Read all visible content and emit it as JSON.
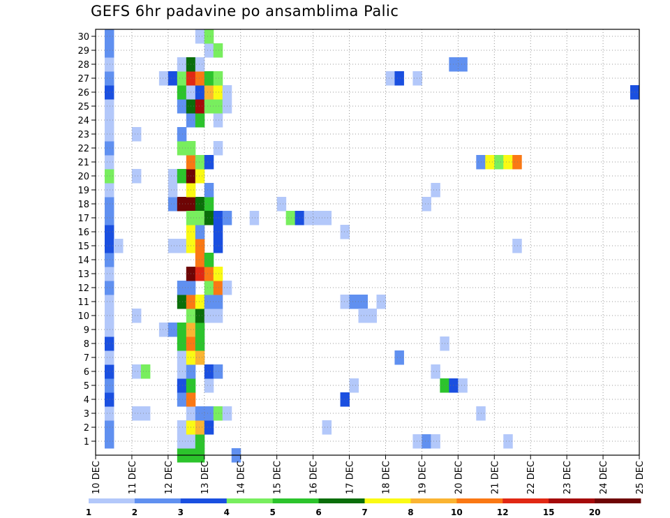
{
  "chart_data": {
    "type": "heatmap",
    "title": "GEFS 6hr padavine po ansamblima Palic",
    "xlabel": "",
    "ylabel": "",
    "x_tick_labels": [
      "10 DEC",
      "11 DEC",
      "12 DEC",
      "13 DEC",
      "14 DEC",
      "15 DEC",
      "16 DEC",
      "17 DEC",
      "18 DEC",
      "19 DEC",
      "20 DEC",
      "21 DEC",
      "22 DEC",
      "23 DEC",
      "24 DEC",
      "25 DEC"
    ],
    "xlim": [
      0,
      15
    ],
    "y_tick_labels": [
      "1",
      "2",
      "3",
      "4",
      "5",
      "6",
      "7",
      "8",
      "9",
      "10",
      "11",
      "12",
      "13",
      "14",
      "15",
      "16",
      "17",
      "18",
      "19",
      "20",
      "21",
      "22",
      "23",
      "24",
      "25",
      "26",
      "27",
      "28",
      "29",
      "30"
    ],
    "ylim": [
      0,
      30
    ],
    "grid": true,
    "legend_position": "bottom",
    "colorbar": {
      "labels": [
        "1",
        "2",
        "3",
        "4",
        "5",
        "6",
        "7",
        "8",
        "10",
        "12",
        "15",
        "20"
      ],
      "colors": [
        "#b3c8fa",
        "#6090f0",
        "#1a4fe0",
        "#78ee5e",
        "#2cc42c",
        "#0a6e0a",
        "#fafa14",
        "#fab432",
        "#fa7814",
        "#e12814",
        "#a50a0a",
        "#6e0505"
      ]
    },
    "cells": [
      {
        "x": 1,
        "y": 1,
        "c": 2
      },
      {
        "x": 1,
        "y": 2,
        "c": 2
      },
      {
        "x": 1,
        "y": 3,
        "c": 1
      },
      {
        "x": 1,
        "y": 4,
        "c": 3
      },
      {
        "x": 1,
        "y": 5,
        "c": 2
      },
      {
        "x": 1,
        "y": 6,
        "c": 3
      },
      {
        "x": 1,
        "y": 7,
        "c": 1
      },
      {
        "x": 1,
        "y": 8,
        "c": 3
      },
      {
        "x": 1,
        "y": 9,
        "c": 1
      },
      {
        "x": 1,
        "y": 10,
        "c": 1
      },
      {
        "x": 1,
        "y": 11,
        "c": 1
      },
      {
        "x": 1,
        "y": 12,
        "c": 2
      },
      {
        "x": 1,
        "y": 13,
        "c": 1
      },
      {
        "x": 1,
        "y": 14,
        "c": 2
      },
      {
        "x": 1,
        "y": 15,
        "c": 3
      },
      {
        "x": 1,
        "y": 16,
        "c": 3
      },
      {
        "x": 1,
        "y": 17,
        "c": 2
      },
      {
        "x": 1,
        "y": 18,
        "c": 2
      },
      {
        "x": 1,
        "y": 19,
        "c": 1
      },
      {
        "x": 1,
        "y": 20,
        "c": 4
      },
      {
        "x": 1,
        "y": 21,
        "c": 1
      },
      {
        "x": 1,
        "y": 22,
        "c": 2
      },
      {
        "x": 1,
        "y": 23,
        "c": 1
      },
      {
        "x": 1,
        "y": 24,
        "c": 1
      },
      {
        "x": 1,
        "y": 25,
        "c": 1
      },
      {
        "x": 1,
        "y": 26,
        "c": 3
      },
      {
        "x": 1,
        "y": 27,
        "c": 2
      },
      {
        "x": 1,
        "y": 28,
        "c": 1
      },
      {
        "x": 1,
        "y": 29,
        "c": 2
      },
      {
        "x": 1,
        "y": 30,
        "c": 2
      },
      {
        "x": 2,
        "y": 15,
        "c": 1
      },
      {
        "x": 4,
        "y": 3,
        "c": 1
      },
      {
        "x": 5,
        "y": 3,
        "c": 1
      },
      {
        "x": 4,
        "y": 6,
        "c": 1
      },
      {
        "x": 5,
        "y": 6,
        "c": 4
      },
      {
        "x": 4,
        "y": 10,
        "c": 1
      },
      {
        "x": 4,
        "y": 20,
        "c": 1
      },
      {
        "x": 4,
        "y": 23,
        "c": 1
      },
      {
        "x": 7,
        "y": 9,
        "c": 1
      },
      {
        "x": 8,
        "y": 9,
        "c": 2
      },
      {
        "x": 7,
        "y": 27,
        "c": 1
      },
      {
        "x": 8,
        "y": 27,
        "c": 3
      },
      {
        "x": 8,
        "y": 15,
        "c": 1
      },
      {
        "x": 9,
        "y": 15,
        "c": 1
      },
      {
        "x": 8,
        "y": 18,
        "c": 2
      },
      {
        "x": 9,
        "y": 18,
        "c": 12
      },
      {
        "x": 10,
        "y": 18,
        "c": 12
      },
      {
        "x": 11,
        "y": 18,
        "c": 6
      },
      {
        "x": 12,
        "y": 18,
        "c": 5
      },
      {
        "x": 8,
        "y": 19,
        "c": 1
      },
      {
        "x": 10,
        "y": 19,
        "c": 7
      },
      {
        "x": 12,
        "y": 19,
        "c": 2
      },
      {
        "x": 8,
        "y": 20,
        "c": 1
      },
      {
        "x": 9,
        "y": 20,
        "c": 5
      },
      {
        "x": 10,
        "y": 20,
        "c": 12
      },
      {
        "x": 11,
        "y": 20,
        "c": 7
      },
      {
        "x": 9,
        "y": 0,
        "c": 5
      },
      {
        "x": 10,
        "y": 0,
        "c": 5
      },
      {
        "x": 11,
        "y": 0,
        "c": 5
      },
      {
        "x": 9,
        "y": 1,
        "c": 1
      },
      {
        "x": 10,
        "y": 1,
        "c": 1
      },
      {
        "x": 11,
        "y": 1,
        "c": 5
      },
      {
        "x": 9,
        "y": 2,
        "c": 1
      },
      {
        "x": 10,
        "y": 2,
        "c": 7
      },
      {
        "x": 11,
        "y": 2,
        "c": 8
      },
      {
        "x": 12,
        "y": 2,
        "c": 3
      },
      {
        "x": 10,
        "y": 3,
        "c": 1
      },
      {
        "x": 11,
        "y": 3,
        "c": 2
      },
      {
        "x": 12,
        "y": 3,
        "c": 2
      },
      {
        "x": 13,
        "y": 3,
        "c": 4
      },
      {
        "x": 14,
        "y": 3,
        "c": 1
      },
      {
        "x": 9,
        "y": 4,
        "c": 2
      },
      {
        "x": 10,
        "y": 4,
        "c": 9
      },
      {
        "x": 9,
        "y": 5,
        "c": 3
      },
      {
        "x": 10,
        "y": 5,
        "c": 5
      },
      {
        "x": 12,
        "y": 5,
        "c": 1
      },
      {
        "x": 9,
        "y": 6,
        "c": 1
      },
      {
        "x": 10,
        "y": 6,
        "c": 2
      },
      {
        "x": 12,
        "y": 6,
        "c": 3
      },
      {
        "x": 13,
        "y": 6,
        "c": 2
      },
      {
        "x": 9,
        "y": 7,
        "c": 1
      },
      {
        "x": 10,
        "y": 7,
        "c": 7
      },
      {
        "x": 11,
        "y": 7,
        "c": 8
      },
      {
        "x": 9,
        "y": 8,
        "c": 5
      },
      {
        "x": 10,
        "y": 8,
        "c": 9
      },
      {
        "x": 11,
        "y": 8,
        "c": 5
      },
      {
        "x": 9,
        "y": 9,
        "c": 5
      },
      {
        "x": 10,
        "y": 9,
        "c": 8
      },
      {
        "x": 11,
        "y": 9,
        "c": 5
      },
      {
        "x": 10,
        "y": 10,
        "c": 4
      },
      {
        "x": 11,
        "y": 10,
        "c": 6
      },
      {
        "x": 12,
        "y": 10,
        "c": 1
      },
      {
        "x": 13,
        "y": 10,
        "c": 1
      },
      {
        "x": 9,
        "y": 11,
        "c": 6
      },
      {
        "x": 10,
        "y": 11,
        "c": 9
      },
      {
        "x": 11,
        "y": 11,
        "c": 7
      },
      {
        "x": 12,
        "y": 11,
        "c": 2
      },
      {
        "x": 13,
        "y": 11,
        "c": 2
      },
      {
        "x": 9,
        "y": 12,
        "c": 2
      },
      {
        "x": 10,
        "y": 12,
        "c": 2
      },
      {
        "x": 12,
        "y": 12,
        "c": 4
      },
      {
        "x": 13,
        "y": 12,
        "c": 9
      },
      {
        "x": 14,
        "y": 12,
        "c": 1
      },
      {
        "x": 10,
        "y": 13,
        "c": 12
      },
      {
        "x": 11,
        "y": 13,
        "c": 10
      },
      {
        "x": 12,
        "y": 13,
        "c": 9
      },
      {
        "x": 13,
        "y": 13,
        "c": 7
      },
      {
        "x": 11,
        "y": 14,
        "c": 9
      },
      {
        "x": 12,
        "y": 14,
        "c": 5
      },
      {
        "x": 10,
        "y": 15,
        "c": 7
      },
      {
        "x": 11,
        "y": 15,
        "c": 9
      },
      {
        "x": 13,
        "y": 15,
        "c": 3
      },
      {
        "x": 10,
        "y": 16,
        "c": 7
      },
      {
        "x": 11,
        "y": 16,
        "c": 2
      },
      {
        "x": 13,
        "y": 16,
        "c": 3
      },
      {
        "x": 10,
        "y": 17,
        "c": 4
      },
      {
        "x": 11,
        "y": 17,
        "c": 4
      },
      {
        "x": 12,
        "y": 17,
        "c": 6
      },
      {
        "x": 13,
        "y": 17,
        "c": 3
      },
      {
        "x": 14,
        "y": 17,
        "c": 2
      },
      {
        "x": 10,
        "y": 21,
        "c": 9
      },
      {
        "x": 11,
        "y": 21,
        "c": 4
      },
      {
        "x": 12,
        "y": 21,
        "c": 3
      },
      {
        "x": 9,
        "y": 22,
        "c": 4
      },
      {
        "x": 10,
        "y": 22,
        "c": 4
      },
      {
        "x": 13,
        "y": 22,
        "c": 1
      },
      {
        "x": 9,
        "y": 23,
        "c": 2
      },
      {
        "x": 10,
        "y": 24,
        "c": 2
      },
      {
        "x": 11,
        "y": 24,
        "c": 5
      },
      {
        "x": 13,
        "y": 24,
        "c": 1
      },
      {
        "x": 9,
        "y": 25,
        "c": 2
      },
      {
        "x": 10,
        "y": 25,
        "c": 6
      },
      {
        "x": 11,
        "y": 25,
        "c": 11
      },
      {
        "x": 12,
        "y": 25,
        "c": 4
      },
      {
        "x": 13,
        "y": 25,
        "c": 4
      },
      {
        "x": 14,
        "y": 25,
        "c": 1
      },
      {
        "x": 9,
        "y": 26,
        "c": 5
      },
      {
        "x": 10,
        "y": 26,
        "c": 1
      },
      {
        "x": 11,
        "y": 26,
        "c": 3
      },
      {
        "x": 12,
        "y": 26,
        "c": 8
      },
      {
        "x": 13,
        "y": 26,
        "c": 7
      },
      {
        "x": 14,
        "y": 26,
        "c": 1
      },
      {
        "x": 9,
        "y": 27,
        "c": 4
      },
      {
        "x": 10,
        "y": 27,
        "c": 10
      },
      {
        "x": 11,
        "y": 27,
        "c": 9
      },
      {
        "x": 12,
        "y": 27,
        "c": 5
      },
      {
        "x": 13,
        "y": 27,
        "c": 4
      },
      {
        "x": 9,
        "y": 28,
        "c": 1
      },
      {
        "x": 10,
        "y": 28,
        "c": 6
      },
      {
        "x": 11,
        "y": 28,
        "c": 1
      },
      {
        "x": 12,
        "y": 29,
        "c": 1
      },
      {
        "x": 13,
        "y": 29,
        "c": 4
      },
      {
        "x": 11,
        "y": 30,
        "c": 1
      },
      {
        "x": 12,
        "y": 30,
        "c": 4
      },
      {
        "x": 15,
        "y": 0,
        "c": 2
      },
      {
        "x": 17,
        "y": 17,
        "c": 1
      },
      {
        "x": 20,
        "y": 18,
        "c": 1
      },
      {
        "x": 21,
        "y": 17,
        "c": 4
      },
      {
        "x": 22,
        "y": 17,
        "c": 3
      },
      {
        "x": 23,
        "y": 17,
        "c": 1
      },
      {
        "x": 24,
        "y": 17,
        "c": 1
      },
      {
        "x": 25,
        "y": 17,
        "c": 1
      },
      {
        "x": 25,
        "y": 2,
        "c": 1
      },
      {
        "x": 27,
        "y": 4,
        "c": 3
      },
      {
        "x": 27,
        "y": 16,
        "c": 1
      },
      {
        "x": 27,
        "y": 11,
        "c": 1
      },
      {
        "x": 28,
        "y": 11,
        "c": 2
      },
      {
        "x": 29,
        "y": 11,
        "c": 2
      },
      {
        "x": 31,
        "y": 11,
        "c": 1
      },
      {
        "x": 28,
        "y": 5,
        "c": 1
      },
      {
        "x": 29,
        "y": 10,
        "c": 1
      },
      {
        "x": 30,
        "y": 10,
        "c": 1
      },
      {
        "x": 32,
        "y": 27,
        "c": 1
      },
      {
        "x": 33,
        "y": 27,
        "c": 3
      },
      {
        "x": 33,
        "y": 7,
        "c": 2
      },
      {
        "x": 35,
        "y": 1,
        "c": 1
      },
      {
        "x": 36,
        "y": 1,
        "c": 2
      },
      {
        "x": 37,
        "y": 1,
        "c": 1
      },
      {
        "x": 35,
        "y": 27,
        "c": 1
      },
      {
        "x": 36,
        "y": 18,
        "c": 1
      },
      {
        "x": 37,
        "y": 6,
        "c": 1
      },
      {
        "x": 37,
        "y": 19,
        "c": 1
      },
      {
        "x": 38,
        "y": 8,
        "c": 1
      },
      {
        "x": 38,
        "y": 5,
        "c": 5
      },
      {
        "x": 39,
        "y": 5,
        "c": 3
      },
      {
        "x": 40,
        "y": 5,
        "c": 1
      },
      {
        "x": 39,
        "y": 28,
        "c": 2
      },
      {
        "x": 40,
        "y": 28,
        "c": 2
      },
      {
        "x": 42,
        "y": 3,
        "c": 1
      },
      {
        "x": 42,
        "y": 21,
        "c": 2
      },
      {
        "x": 43,
        "y": 21,
        "c": 7
      },
      {
        "x": 44,
        "y": 21,
        "c": 4
      },
      {
        "x": 45,
        "y": 21,
        "c": 7
      },
      {
        "x": 46,
        "y": 21,
        "c": 9
      },
      {
        "x": 45,
        "y": 1,
        "c": 1
      },
      {
        "x": 46,
        "y": 15,
        "c": 1
      },
      {
        "x": 59,
        "y": 26,
        "c": 3
      }
    ]
  }
}
